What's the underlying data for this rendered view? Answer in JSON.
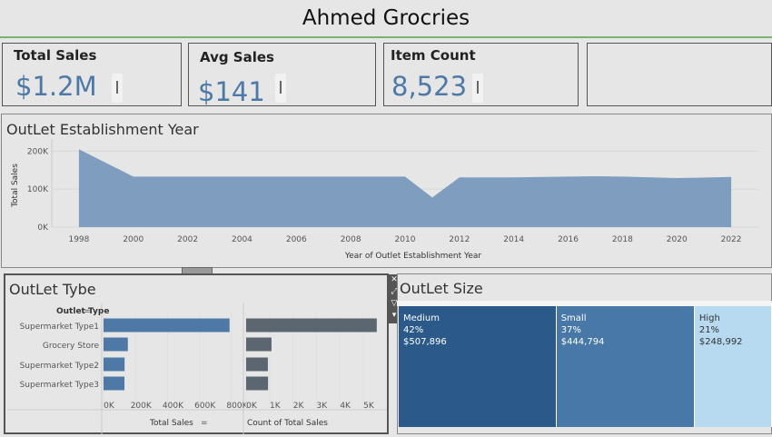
{
  "header": {
    "title": "Ahmed Grocries"
  },
  "kpis": [
    {
      "label": "Total Sales",
      "value": "$1.2M"
    },
    {
      "label": "Avg Sales",
      "value": "$141"
    },
    {
      "label": "Item Count",
      "value": "8,523"
    }
  ],
  "area_panel": {
    "title": "OutLet Establishment Year"
  },
  "type_panel": {
    "title": "OutLet Tybe",
    "dim_header": "Outlet Type",
    "x1_label": "Total Sales",
    "x2_label": "Count of Total Sales"
  },
  "size_panel": {
    "title": "OutLet Size"
  },
  "toolbar": {
    "close": "✕",
    "expand": "⤢",
    "filter": "▽",
    "more": "▾"
  },
  "colors": {
    "accent": "#4e79a7",
    "area": "#7f9dbf",
    "gray_bar": "#5c6670",
    "tm_medium": "#2b5989",
    "tm_small": "#4878a8",
    "tm_high": "#b7daf0",
    "title_border": "#7cb26f"
  },
  "chart_data": [
    {
      "type": "area",
      "title": "OutLet Establishment Year",
      "xlabel": "Year of Outlet Establishment Year",
      "ylabel": "Total Sales",
      "x": [
        1998,
        2000,
        2002,
        2004,
        2006,
        2008,
        2010,
        2011,
        2012,
        2014,
        2016,
        2017,
        2018,
        2020,
        2022
      ],
      "values": [
        205000,
        133000,
        133000,
        133000,
        133000,
        133000,
        133000,
        78000,
        131000,
        131000,
        133000,
        134000,
        133000,
        129000,
        132000
      ],
      "xticks": [
        "1998",
        "2000",
        "2002",
        "2004",
        "2006",
        "2008",
        "2010",
        "2012",
        "2014",
        "2016",
        "2018",
        "2020",
        "2022"
      ],
      "yticks": [
        "200K",
        "100K",
        "0K"
      ],
      "ytick_values": [
        200000,
        100000,
        0
      ],
      "xlim": [
        1997,
        2023
      ],
      "ylim": [
        0,
        220000
      ],
      "grid": true
    },
    {
      "type": "bar",
      "orientation": "horizontal",
      "xlabel": "Total Sales",
      "categories": [
        "Supermarket Type1",
        "Grocery Store",
        "Supermarket Type2",
        "Supermarket Type3"
      ],
      "values": [
        787550,
        151939,
        131478,
        130714
      ],
      "xticks": [
        "0K",
        "200K",
        "400K",
        "600K",
        "800K"
      ],
      "xtick_values": [
        0,
        200000,
        400000,
        600000,
        800000
      ],
      "xlim": [
        0,
        840000
      ]
    },
    {
      "type": "bar",
      "orientation": "horizontal",
      "xlabel": "Count of Total Sales",
      "categories": [
        "Supermarket Type1",
        "Grocery Store",
        "Supermarket Type2",
        "Supermarket Type3"
      ],
      "values": [
        5577,
        1083,
        928,
        935
      ],
      "xticks": [
        "0K",
        "1K",
        "2K",
        "3K",
        "4K",
        "5K"
      ],
      "xtick_values": [
        0,
        1000,
        2000,
        3000,
        4000,
        5000
      ],
      "xlim": [
        0,
        5700
      ]
    },
    {
      "type": "treemap",
      "labels": [
        "Medium",
        "Small",
        "High"
      ],
      "percents": [
        "42%",
        "37%",
        "21%"
      ],
      "values_text": [
        "$507,896",
        "$444,794",
        "$248,992"
      ],
      "values": [
        507896,
        444794,
        248992
      ]
    }
  ]
}
